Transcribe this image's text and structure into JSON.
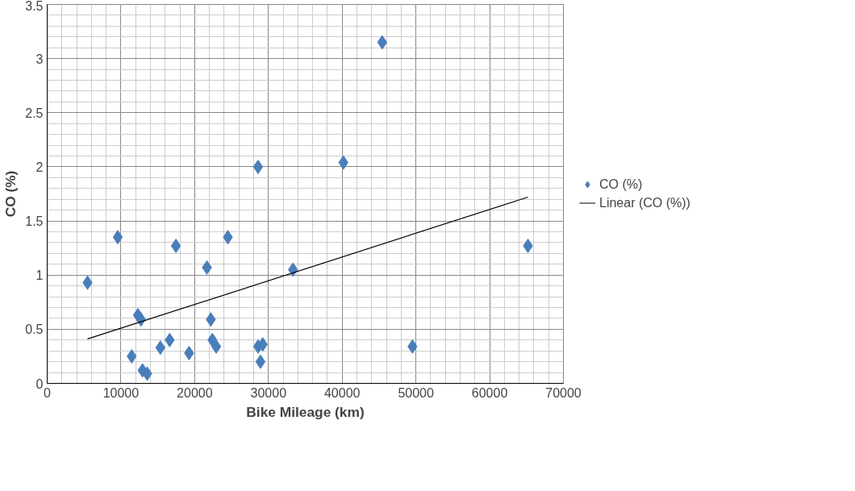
{
  "chart_data": {
    "type": "scatter",
    "xlabel": "Bike Mileage (km)",
    "ylabel": "CO (%)",
    "xlim": [
      0,
      70000
    ],
    "xticks": [
      0,
      10000,
      20000,
      30000,
      40000,
      50000,
      60000,
      70000
    ],
    "ylim": [
      0,
      3.5
    ],
    "yticks": [
      0,
      0.5,
      1,
      1.5,
      2,
      2.5,
      3,
      3.5
    ],
    "grid": true,
    "legend": "right",
    "series": [
      {
        "name": "CO (%)",
        "marker": "diamond",
        "color": "#4a7ebb",
        "x": [
          5470,
          9570,
          11460,
          12300,
          12720,
          12930,
          13560,
          15350,
          16610,
          17460,
          19240,
          21660,
          22190,
          22400,
          22920,
          24500,
          28600,
          28600,
          28920,
          29230,
          33330,
          40170,
          45430,
          49530,
          65190
        ],
        "values": [
          0.93,
          1.35,
          0.25,
          0.63,
          0.59,
          0.12,
          0.09,
          0.33,
          0.4,
          1.27,
          0.28,
          1.07,
          0.59,
          0.4,
          0.34,
          1.35,
          2.0,
          0.34,
          0.2,
          0.36,
          1.05,
          2.04,
          3.15,
          0.34,
          1.27
        ]
      },
      {
        "name": "Linear (CO (%))",
        "type": "line",
        "color": "#000000",
        "x": [
          5470,
          65190
        ],
        "values": [
          0.41,
          1.72
        ]
      }
    ]
  }
}
